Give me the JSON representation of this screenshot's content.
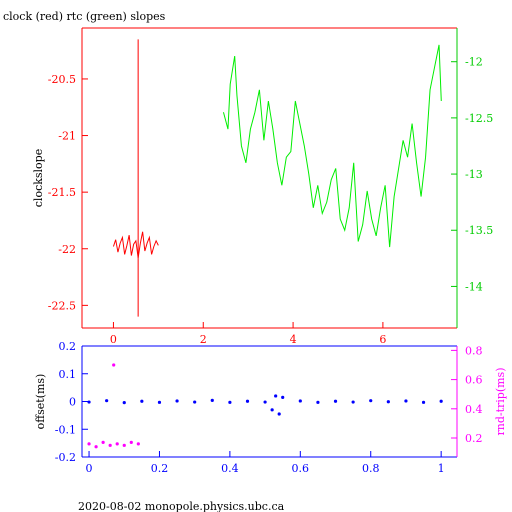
{
  "chart_data": [
    {
      "type": "line",
      "title": "clock (red) rtc (green) slopes",
      "xlabel": "",
      "ylabel": "clockslope",
      "xlim": [
        -0.7,
        7.65
      ],
      "ylim": [
        -22.7,
        -20.05
      ],
      "y2lim": [
        -14.37,
        -11.7
      ],
      "xticks": [
        0,
        2,
        4,
        6
      ],
      "yticks": [
        -20.5,
        -21,
        -21.5,
        -22,
        -22.5
      ],
      "y2ticks": [
        -12,
        -12.5,
        -13,
        -13.5,
        -14
      ],
      "xtick_labels": [
        "0",
        "2",
        "4",
        "6"
      ],
      "ytick_labels": [
        "-20.5",
        "-21",
        "-21.5",
        "-22",
        "-22.5"
      ],
      "y2tick_labels": [
        "-12",
        "-12.5",
        "-13",
        "-13.5",
        "-14"
      ],
      "colors": {
        "axes": "#ff0000",
        "axes2": "#00cc00",
        "clock": "#ff0000",
        "rtc": "#00ee00"
      },
      "series": [
        {
          "axis": "left",
          "x": [
            0,
            0.05,
            0.1,
            0.15,
            0.2,
            0.25,
            0.3,
            0.35,
            0.4,
            0.45,
            0.5,
            0.55,
            0.6,
            0.65,
            0.7,
            0.75,
            0.8,
            0.85,
            0.9,
            0.95,
            1.0
          ],
          "y": [
            -21.98,
            -21.92,
            -22.03,
            -21.95,
            -21.9,
            -22.05,
            -21.97,
            -21.88,
            -22.06,
            -21.96,
            -21.93,
            -22.08,
            -21.95,
            -21.85,
            -22.02,
            -21.95,
            -21.9,
            -22.05,
            -21.98,
            -21.93,
            -21.97
          ]
        },
        {
          "axis": "left",
          "x": [
            0.55,
            0.55
          ],
          "y": [
            -20.15,
            -22.6
          ]
        },
        {
          "axis": "right",
          "x": [
            2.45,
            2.55,
            2.6,
            2.7,
            2.75,
            2.85,
            2.95,
            3.05,
            3.15,
            3.25,
            3.35,
            3.45,
            3.55,
            3.65,
            3.75,
            3.85,
            3.95,
            4.05,
            4.15,
            4.25,
            4.35,
            4.45,
            4.55,
            4.65,
            4.75,
            4.85,
            4.95,
            5.05,
            5.15,
            5.25,
            5.35,
            5.45,
            5.55,
            5.65,
            5.75,
            5.85,
            5.95,
            6.05,
            6.15,
            6.25,
            6.35,
            6.45,
            6.55,
            6.65,
            6.75,
            6.85,
            6.95,
            7.05,
            7.15,
            7.25,
            7.3
          ],
          "y": [
            -12.45,
            -12.6,
            -12.2,
            -11.95,
            -12.3,
            -12.75,
            -12.9,
            -12.6,
            -12.45,
            -12.25,
            -12.7,
            -12.35,
            -12.6,
            -12.9,
            -13.1,
            -12.85,
            -12.8,
            -12.35,
            -12.55,
            -12.75,
            -13.0,
            -13.3,
            -13.1,
            -13.35,
            -13.25,
            -13.05,
            -12.95,
            -13.4,
            -13.5,
            -13.3,
            -12.9,
            -13.6,
            -13.45,
            -13.15,
            -13.4,
            -13.55,
            -13.3,
            -13.1,
            -13.65,
            -13.2,
            -12.95,
            -12.7,
            -12.85,
            -12.55,
            -12.9,
            -13.2,
            -12.85,
            -12.25,
            -12.05,
            -11.85,
            -12.35
          ]
        }
      ]
    },
    {
      "type": "scatter",
      "title": "",
      "xlabel": "",
      "ylabel": "offset(ms)",
      "y2label": "rnd-trip(ms)",
      "xlim": [
        -0.02,
        1.045
      ],
      "ylim": [
        -0.2,
        0.2
      ],
      "y2lim": [
        0.07,
        0.83
      ],
      "xticks": [
        0,
        0.2,
        0.4,
        0.6,
        0.8,
        1
      ],
      "yticks": [
        0.2,
        0.1,
        0,
        -0.1,
        -0.2
      ],
      "y2ticks": [
        0.8,
        0.6,
        0.4,
        0.2
      ],
      "xtick_labels": [
        "0",
        "0.2",
        "0.4",
        "0.6",
        "0.8",
        "1"
      ],
      "ytick_labels": [
        "0.2",
        "0.1",
        "0",
        "-0.1",
        "-0.2"
      ],
      "y2tick_labels": [
        "0.8",
        "0.6",
        "0.4",
        "0.2"
      ],
      "colors": {
        "axes": "#0000ff",
        "axes2": "#ff00ff",
        "offset": "#0000ff",
        "rndtrip": "#ff00ff"
      },
      "series": [
        {
          "axis": "left",
          "x": [
            0,
            0.05,
            0.1,
            0.15,
            0.2,
            0.25,
            0.3,
            0.35,
            0.4,
            0.45,
            0.5,
            0.52,
            0.53,
            0.54,
            0.55,
            0.6,
            0.65,
            0.7,
            0.75,
            0.8,
            0.85,
            0.9,
            0.95,
            1.0
          ],
          "y": [
            -0.002,
            0.003,
            -0.004,
            0.001,
            -0.003,
            0.002,
            -0.002,
            0.004,
            -0.003,
            0.001,
            -0.002,
            -0.03,
            0.02,
            -0.045,
            0.015,
            0.002,
            -0.003,
            0.001,
            -0.002,
            0.003,
            -0.001,
            0.002,
            -0.003,
            0.001
          ]
        },
        {
          "axis": "right",
          "x": [
            0,
            0.02,
            0.04,
            0.06,
            0.07,
            0.08,
            0.1,
            0.12,
            0.14
          ],
          "y": [
            0.16,
            0.14,
            0.17,
            0.15,
            0.7,
            0.16,
            0.15,
            0.17,
            0.16
          ]
        }
      ]
    }
  ],
  "footer": "2020-08-02  monopole.physics.ubc.ca"
}
